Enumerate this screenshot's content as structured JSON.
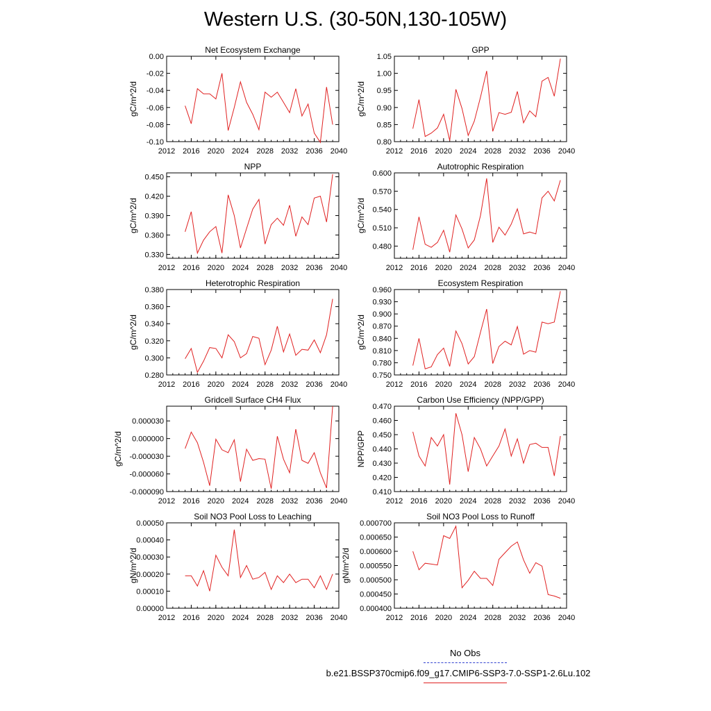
{
  "page": {
    "title": "Western U.S. (30-50N,130-105W)"
  },
  "legend": {
    "obs_label": "No Obs",
    "obs_color": "#3040d0",
    "run_label": "b.e21.BSSP370cmip6.f09_g17.CMIP6-SSP3-7.0-SSP1-2.6Lu.102",
    "run_color": "#e02020"
  },
  "chart_data": [
    {
      "type": "line",
      "title": "Net Ecosystem Exchange",
      "ylabel": "gC/m^2/d",
      "xlim": [
        2012,
        2040
      ],
      "xticks": [
        "2012",
        "2016",
        "2020",
        "2024",
        "2028",
        "2032",
        "2036",
        "2040"
      ],
      "ylim": [
        -0.1,
        0.0
      ],
      "yticks": [
        "-0.10",
        "-0.08",
        "-0.06",
        "-0.04",
        "-0.02",
        "0.00"
      ],
      "x": [
        2015,
        2016,
        2017,
        2018,
        2019,
        2020,
        2021,
        2022,
        2023,
        2024,
        2025,
        2026,
        2027,
        2028,
        2029,
        2030,
        2031,
        2032,
        2033,
        2034,
        2035,
        2036,
        2037,
        2038,
        2039
      ],
      "series": [
        {
          "color": "#e02020",
          "values": [
            -0.058,
            -0.079,
            -0.038,
            -0.044,
            -0.044,
            -0.05,
            -0.02,
            -0.087,
            -0.06,
            -0.03,
            -0.054,
            -0.068,
            -0.086,
            -0.042,
            -0.048,
            -0.042,
            -0.054,
            -0.066,
            -0.038,
            -0.07,
            -0.056,
            -0.09,
            -0.101,
            -0.036,
            -0.08
          ]
        }
      ]
    },
    {
      "type": "line",
      "title": "GPP",
      "ylabel": "gC/m^2/d",
      "xlim": [
        2012,
        2040
      ],
      "xticks": [
        "2012",
        "2016",
        "2020",
        "2024",
        "2028",
        "2032",
        "2036",
        "2040"
      ],
      "ylim": [
        0.8,
        1.05
      ],
      "yticks": [
        "0.80",
        "0.85",
        "0.90",
        "0.95",
        "1.00",
        "1.05"
      ],
      "x": [
        2015,
        2016,
        2017,
        2018,
        2019,
        2020,
        2021,
        2022,
        2023,
        2024,
        2025,
        2026,
        2027,
        2028,
        2029,
        2030,
        2031,
        2032,
        2033,
        2034,
        2035,
        2036,
        2037,
        2038,
        2039
      ],
      "series": [
        {
          "color": "#e02020",
          "values": [
            0.838,
            0.923,
            0.815,
            0.825,
            0.84,
            0.88,
            0.803,
            0.953,
            0.897,
            0.818,
            0.86,
            0.93,
            1.007,
            0.83,
            0.885,
            0.88,
            0.886,
            0.947,
            0.855,
            0.89,
            0.873,
            0.977,
            0.988,
            0.933,
            1.043
          ]
        }
      ]
    },
    {
      "type": "line",
      "title": "NPP",
      "ylabel": "gC/m^2/d",
      "xlim": [
        2012,
        2040
      ],
      "xticks": [
        "2012",
        "2016",
        "2020",
        "2024",
        "2028",
        "2032",
        "2036",
        "2040"
      ],
      "ylim": [
        0.324,
        0.456
      ],
      "yticks": [
        "0.330",
        "0.360",
        "0.390",
        "0.420",
        "0.450"
      ],
      "x": [
        2015,
        2016,
        2017,
        2018,
        2019,
        2020,
        2021,
        2022,
        2023,
        2024,
        2025,
        2026,
        2027,
        2028,
        2029,
        2030,
        2031,
        2032,
        2033,
        2034,
        2035,
        2036,
        2037,
        2038,
        2039
      ],
      "series": [
        {
          "color": "#e02020",
          "values": [
            0.365,
            0.396,
            0.332,
            0.352,
            0.365,
            0.373,
            0.332,
            0.422,
            0.39,
            0.34,
            0.37,
            0.4,
            0.415,
            0.346,
            0.376,
            0.386,
            0.375,
            0.406,
            0.358,
            0.388,
            0.376,
            0.417,
            0.42,
            0.38,
            0.454
          ]
        }
      ]
    },
    {
      "type": "line",
      "title": "Autotrophic Respiration",
      "ylabel": "gC/m^2/d",
      "xlim": [
        2012,
        2040
      ],
      "xticks": [
        "2012",
        "2016",
        "2020",
        "2024",
        "2028",
        "2032",
        "2036",
        "2040"
      ],
      "ylim": [
        0.46,
        0.6
      ],
      "yticks": [
        "0.480",
        "0.510",
        "0.540",
        "0.570",
        "0.600"
      ],
      "x": [
        2015,
        2016,
        2017,
        2018,
        2019,
        2020,
        2021,
        2022,
        2023,
        2024,
        2025,
        2026,
        2027,
        2028,
        2029,
        2030,
        2031,
        2032,
        2033,
        2034,
        2035,
        2036,
        2037,
        2038,
        2039
      ],
      "series": [
        {
          "color": "#e02020",
          "values": [
            0.474,
            0.528,
            0.483,
            0.478,
            0.486,
            0.506,
            0.47,
            0.531,
            0.508,
            0.477,
            0.49,
            0.53,
            0.591,
            0.486,
            0.511,
            0.498,
            0.516,
            0.541,
            0.5,
            0.503,
            0.5,
            0.559,
            0.57,
            0.554,
            0.588
          ]
        }
      ]
    },
    {
      "type": "line",
      "title": "Heterotrophic Respiration",
      "ylabel": "gC/m^2/d",
      "xlim": [
        2012,
        2040
      ],
      "xticks": [
        "2012",
        "2016",
        "2020",
        "2024",
        "2028",
        "2032",
        "2036",
        "2040"
      ],
      "ylim": [
        0.28,
        0.38
      ],
      "yticks": [
        "0.280",
        "0.300",
        "0.320",
        "0.340",
        "0.360",
        "0.380"
      ],
      "x": [
        2015,
        2016,
        2017,
        2018,
        2019,
        2020,
        2021,
        2022,
        2023,
        2024,
        2025,
        2026,
        2027,
        2028,
        2029,
        2030,
        2031,
        2032,
        2033,
        2034,
        2035,
        2036,
        2037,
        2038,
        2039
      ],
      "series": [
        {
          "color": "#e02020",
          "values": [
            0.299,
            0.311,
            0.283,
            0.296,
            0.312,
            0.311,
            0.3,
            0.327,
            0.319,
            0.3,
            0.305,
            0.325,
            0.323,
            0.292,
            0.309,
            0.337,
            0.307,
            0.328,
            0.303,
            0.31,
            0.309,
            0.321,
            0.306,
            0.327,
            0.369
          ]
        }
      ]
    },
    {
      "type": "line",
      "title": "Ecosystem Respiration",
      "ylabel": "gC/m^2/d",
      "xlim": [
        2012,
        2040
      ],
      "xticks": [
        "2012",
        "2016",
        "2020",
        "2024",
        "2028",
        "2032",
        "2036",
        "2040"
      ],
      "ylim": [
        0.75,
        0.96
      ],
      "yticks": [
        "0.750",
        "0.780",
        "0.810",
        "0.840",
        "0.870",
        "0.900",
        "0.930",
        "0.960"
      ],
      "x": [
        2015,
        2016,
        2017,
        2018,
        2019,
        2020,
        2021,
        2022,
        2023,
        2024,
        2025,
        2026,
        2027,
        2028,
        2029,
        2030,
        2031,
        2032,
        2033,
        2034,
        2035,
        2036,
        2037,
        2038,
        2039
      ],
      "series": [
        {
          "color": "#e02020",
          "values": [
            0.773,
            0.84,
            0.765,
            0.77,
            0.8,
            0.816,
            0.771,
            0.858,
            0.827,
            0.777,
            0.795,
            0.855,
            0.912,
            0.778,
            0.82,
            0.833,
            0.824,
            0.869,
            0.801,
            0.81,
            0.806,
            0.88,
            0.876,
            0.88,
            0.956
          ]
        }
      ]
    },
    {
      "type": "line",
      "title": "Gridcell Surface CH4 Flux",
      "ylabel": "gC/m^2/d",
      "xlim": [
        2012,
        2040
      ],
      "xticks": [
        "2012",
        "2016",
        "2020",
        "2024",
        "2028",
        "2032",
        "2036",
        "2040"
      ],
      "ylim": [
        -9e-05,
        5.5e-05
      ],
      "yticks": [
        "-0.000090",
        "-0.000060",
        "-0.000030",
        "0.000000",
        "0.000030"
      ],
      "x": [
        2015,
        2016,
        2017,
        2018,
        2019,
        2020,
        2021,
        2022,
        2023,
        2024,
        2025,
        2026,
        2027,
        2028,
        2029,
        2030,
        2031,
        2032,
        2033,
        2034,
        2035,
        2036,
        2037,
        2038,
        2039
      ],
      "series": [
        {
          "color": "#e02020",
          "values": [
            -1.7e-05,
            1.1e-05,
            -7e-06,
            -4e-05,
            -8e-05,
            -1e-06,
            -1.9e-05,
            -2.4e-05,
            -2e-06,
            -7.3e-05,
            -1.8e-05,
            -3.7e-05,
            -3.4e-05,
            -3.5e-05,
            -8.5e-05,
            4e-06,
            -3.5e-05,
            -5.8e-05,
            1.6e-05,
            -3.7e-05,
            -4.2e-05,
            -2.4e-05,
            -5.8e-05,
            -8.4e-05,
            5.5e-05
          ]
        }
      ]
    },
    {
      "type": "line",
      "title": "Carbon Use Efficiency (NPP/GPP)",
      "ylabel": "NPP/GPP",
      "xlim": [
        2012,
        2040
      ],
      "xticks": [
        "2012",
        "2016",
        "2020",
        "2024",
        "2028",
        "2032",
        "2036",
        "2040"
      ],
      "ylim": [
        0.41,
        0.47
      ],
      "yticks": [
        "0.410",
        "0.420",
        "0.430",
        "0.440",
        "0.450",
        "0.460",
        "0.470"
      ],
      "x": [
        2015,
        2016,
        2017,
        2018,
        2019,
        2020,
        2021,
        2022,
        2023,
        2024,
        2025,
        2026,
        2027,
        2028,
        2029,
        2030,
        2031,
        2032,
        2033,
        2034,
        2035,
        2036,
        2037,
        2038,
        2039
      ],
      "series": [
        {
          "color": "#e02020",
          "values": [
            0.452,
            0.435,
            0.428,
            0.448,
            0.442,
            0.45,
            0.415,
            0.465,
            0.45,
            0.424,
            0.448,
            0.44,
            0.428,
            0.435,
            0.442,
            0.454,
            0.435,
            0.447,
            0.43,
            0.443,
            0.444,
            0.441,
            0.441,
            0.421,
            0.449
          ]
        }
      ]
    },
    {
      "type": "line",
      "title": "Soil NO3 Pool Loss to Leaching",
      "ylabel": "gN/m^2/d",
      "xlim": [
        2012,
        2040
      ],
      "xticks": [
        "2012",
        "2016",
        "2020",
        "2024",
        "2028",
        "2032",
        "2036",
        "2040"
      ],
      "ylim": [
        0.0,
        0.0005
      ],
      "yticks": [
        "0.00000",
        "0.00010",
        "0.00020",
        "0.00030",
        "0.00040",
        "0.00050"
      ],
      "x": [
        2015,
        2016,
        2017,
        2018,
        2019,
        2020,
        2021,
        2022,
        2023,
        2024,
        2025,
        2026,
        2027,
        2028,
        2029,
        2030,
        2031,
        2032,
        2033,
        2034,
        2035,
        2036,
        2037,
        2038,
        2039
      ],
      "series": [
        {
          "color": "#e02020",
          "values": [
            0.00019,
            0.00019,
            0.00013,
            0.00022,
            0.0001,
            0.00031,
            0.00024,
            0.00019,
            0.00046,
            0.00018,
            0.00025,
            0.00017,
            0.00018,
            0.00021,
            0.00011,
            0.00019,
            0.00015,
            0.0002,
            0.00015,
            0.00017,
            0.00017,
            0.00012,
            0.00019,
            0.00011,
            0.0002
          ]
        }
      ]
    },
    {
      "type": "line",
      "title": "Soil NO3 Pool Loss to Runoff",
      "ylabel": "gN/m^2/d",
      "xlim": [
        2012,
        2040
      ],
      "xticks": [
        "2012",
        "2016",
        "2020",
        "2024",
        "2028",
        "2032",
        "2036",
        "2040"
      ],
      "ylim": [
        0.0004,
        0.0007
      ],
      "yticks": [
        "0.000400",
        "0.000450",
        "0.000500",
        "0.000550",
        "0.000600",
        "0.000650",
        "0.000700"
      ],
      "x": [
        2015,
        2016,
        2017,
        2018,
        2019,
        2020,
        2021,
        2022,
        2023,
        2024,
        2025,
        2026,
        2027,
        2028,
        2029,
        2030,
        2031,
        2032,
        2033,
        2034,
        2035,
        2036,
        2037,
        2038,
        2039
      ],
      "series": [
        {
          "color": "#e02020",
          "values": [
            0.0006,
            0.000535,
            0.000558,
            0.000555,
            0.000552,
            0.000655,
            0.000645,
            0.000688,
            0.000472,
            0.000498,
            0.00053,
            0.000505,
            0.000505,
            0.00048,
            0.000572,
            0.000595,
            0.000618,
            0.000633,
            0.00057,
            0.000523,
            0.00056,
            0.000548,
            0.000448,
            0.000443,
            0.000435
          ]
        }
      ]
    }
  ]
}
